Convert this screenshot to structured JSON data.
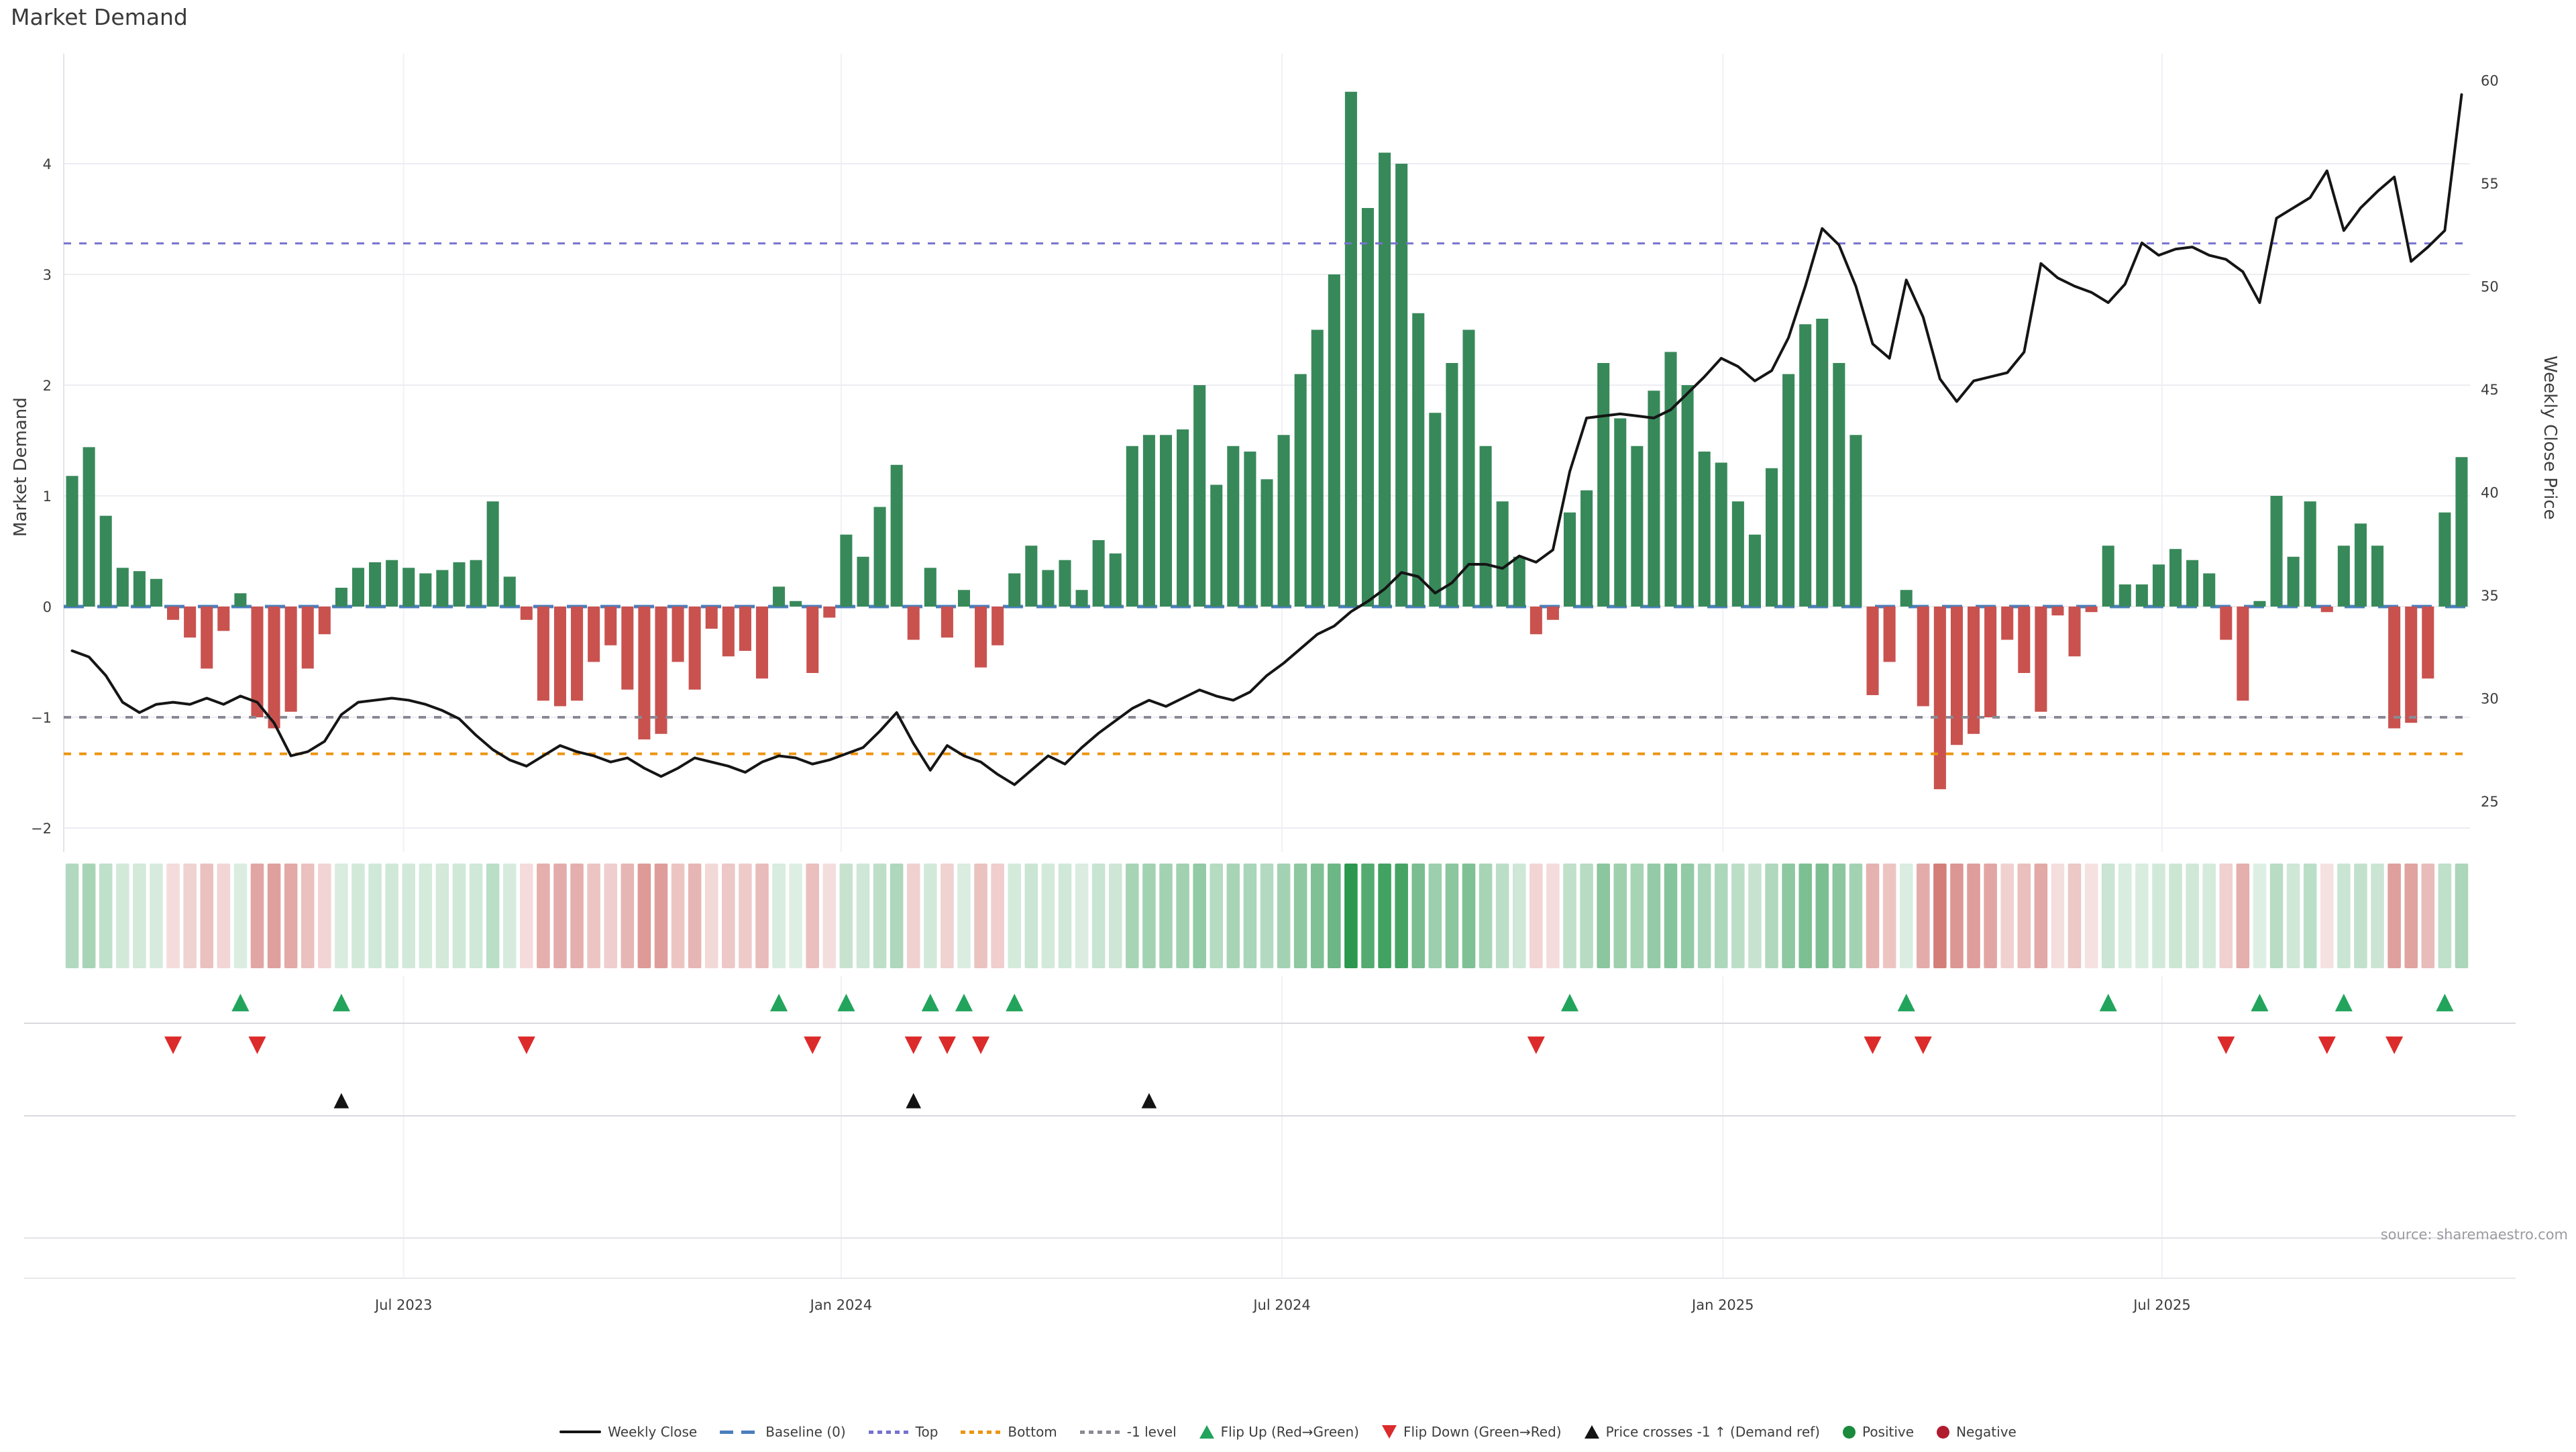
{
  "title": "Market Demand",
  "source": "source: sharemaestro.com",
  "left_axis": {
    "label": "Market Demand",
    "ticks": [
      "4",
      "3",
      "2",
      "1",
      "0",
      "−1",
      "−2"
    ],
    "tick_values": [
      4,
      3,
      2,
      1,
      0,
      -1,
      -2
    ]
  },
  "right_axis": {
    "label": "Weekly Close Price",
    "ticks": [
      "60",
      "55",
      "50",
      "45",
      "40",
      "35",
      "30",
      "25"
    ],
    "tick_values": [
      60,
      55,
      50,
      45,
      40,
      35,
      30,
      25
    ]
  },
  "colors": {
    "bar_positive": "#38895a",
    "bar_negative": "#c9524f",
    "price_line": "#151515",
    "baseline": "#4a7ebb",
    "top_level": "#7672cf",
    "bottom_level": "#ec9410",
    "minus_one_level": "#8a8a94",
    "flip_up_marker": "#22a45c",
    "flip_down_marker": "#dc2b2b",
    "cross_marker": "#131313",
    "heat_positive": "#1e9144",
    "heat_negative": "#c65550",
    "gridline": "#ededf2",
    "panel_separator": "#d9d9de",
    "axis_text": "#3d3d3d"
  },
  "legend": [
    {
      "label": "Weekly Close",
      "swatch": "line",
      "color": "#141414"
    },
    {
      "label": "Baseline (0)",
      "swatch": "dash",
      "color": "#4a7ebb"
    },
    {
      "label": "Top",
      "swatch": "dots",
      "color": "#7672cf"
    },
    {
      "label": "Bottom",
      "swatch": "dots",
      "color": "#ec9410"
    },
    {
      "label": "-1 level",
      "swatch": "dots",
      "color": "#8a8a94"
    },
    {
      "label": "Flip Up (Red→Green)",
      "swatch": "tri-up",
      "color": "#22a45c"
    },
    {
      "label": "Flip Down (Green→Red)",
      "swatch": "tri-down",
      "color": "#dc2b2b"
    },
    {
      "label": "Price crosses -1 ↑ (Demand ref)",
      "swatch": "tri-up",
      "color": "#131313"
    },
    {
      "label": "Positive",
      "swatch": "circle",
      "color": "#1a8a3c"
    },
    {
      "label": "Negative",
      "swatch": "circle",
      "color": "#b01c2e"
    }
  ],
  "chart_data": {
    "type": "bar",
    "title": "Market Demand",
    "xlabel": "",
    "ylabel_left": "Market Demand",
    "ylabel_right": "Weekly Close Price",
    "weeks": 143,
    "x_tick_labels": [
      "Jul 2023",
      "Jan 2024",
      "Jul 2024",
      "Jan 2025",
      "Jul 2025"
    ],
    "x_tick_weeks": [
      20.7,
      46.7,
      72.9,
      99.1,
      125.2
    ],
    "left_ylim": [
      -2.22,
      4.99
    ],
    "right_ylim": [
      22.0,
      60.0
    ],
    "levels": {
      "baseline": 0,
      "top": 3.28,
      "bottom": -1.33,
      "minus_one": -1
    },
    "series": [
      {
        "name": "Market Demand",
        "type": "bar",
        "values": [
          1.18,
          1.44,
          0.82,
          0.35,
          0.32,
          0.25,
          -0.12,
          -0.28,
          -0.56,
          -0.22,
          0.12,
          -1.0,
          -1.1,
          -0.95,
          -0.56,
          -0.25,
          0.17,
          0.35,
          0.4,
          0.42,
          0.35,
          0.3,
          0.33,
          0.4,
          0.42,
          0.95,
          0.27,
          -0.12,
          -0.85,
          -0.9,
          -0.85,
          -0.5,
          -0.35,
          -0.75,
          -1.2,
          -1.15,
          -0.5,
          -0.75,
          -0.2,
          -0.45,
          -0.4,
          -0.65,
          0.18,
          0.05,
          -0.6,
          -0.1,
          0.65,
          0.45,
          0.9,
          1.28,
          -0.3,
          0.35,
          -0.28,
          0.15,
          -0.55,
          -0.35,
          0.3,
          0.55,
          0.33,
          0.42,
          0.15,
          0.6,
          0.48,
          1.45,
          1.55,
          1.55,
          1.6,
          2.0,
          1.1,
          1.45,
          1.4,
          1.15,
          1.55,
          2.1,
          2.5,
          3.0,
          4.65,
          3.6,
          4.1,
          4.0,
          2.65,
          1.75,
          2.2,
          2.5,
          1.45,
          0.95,
          0.45,
          -0.25,
          -0.12,
          0.85,
          1.05,
          2.2,
          1.7,
          1.45,
          1.95,
          2.3,
          2.0,
          1.4,
          1.3,
          0.95,
          0.65,
          1.25,
          2.1,
          2.55,
          2.6,
          2.2,
          1.55,
          -0.8,
          -0.5,
          0.15,
          -0.9,
          -1.65,
          -1.25,
          -1.15,
          -1.0,
          -0.3,
          -0.6,
          -0.95,
          -0.08,
          -0.45,
          -0.05,
          0.55,
          0.2,
          0.2,
          0.38,
          0.52,
          0.42,
          0.3,
          -0.3,
          -0.85,
          0.05,
          1.0,
          0.45,
          0.95,
          -0.05,
          0.55,
          0.75,
          0.55,
          -1.1,
          -1.05,
          -0.65,
          0.85,
          1.35
        ]
      },
      {
        "name": "Weekly Close",
        "type": "line",
        "values": [
          32.3,
          32.0,
          31.1,
          29.8,
          29.3,
          29.7,
          29.8,
          29.7,
          30.0,
          29.7,
          30.1,
          29.8,
          28.8,
          27.2,
          27.4,
          27.9,
          29.2,
          29.8,
          29.9,
          30.0,
          29.9,
          29.7,
          29.4,
          29.0,
          28.2,
          27.5,
          27.0,
          26.7,
          27.2,
          27.7,
          27.4,
          27.2,
          26.9,
          27.1,
          26.6,
          26.2,
          26.6,
          27.1,
          26.9,
          26.7,
          26.4,
          26.9,
          27.2,
          27.1,
          26.8,
          27.0,
          27.3,
          27.6,
          28.4,
          29.3,
          27.8,
          26.5,
          27.7,
          27.2,
          26.9,
          26.3,
          25.8,
          26.5,
          27.2,
          26.8,
          27.6,
          28.3,
          28.9,
          29.5,
          29.9,
          29.6,
          30.0,
          30.4,
          30.1,
          29.9,
          30.3,
          31.1,
          31.7,
          32.4,
          33.1,
          33.5,
          34.2,
          34.7,
          35.3,
          36.1,
          35.9,
          35.1,
          35.6,
          36.5,
          36.5,
          36.3,
          36.9,
          36.6,
          37.2,
          41.0,
          43.6,
          43.7,
          43.8,
          43.7,
          43.6,
          44.0,
          44.8,
          45.6,
          46.5,
          46.1,
          45.4,
          45.9,
          47.5,
          50.0,
          52.8,
          52.0,
          50.0,
          47.2,
          46.5,
          50.3,
          48.5,
          45.5,
          44.4,
          45.4,
          45.6,
          45.8,
          46.8,
          51.1,
          50.4,
          50.0,
          49.7,
          49.2,
          50.1,
          52.1,
          51.5,
          51.8,
          51.9,
          51.5,
          51.3,
          50.7,
          49.2,
          53.3,
          53.8,
          54.3,
          55.6,
          52.7,
          53.8,
          54.6,
          55.3,
          51.2,
          51.9,
          52.7,
          59.3
        ]
      }
    ],
    "price_cross_weeks": [
      17,
      51,
      65
    ],
    "heatmap": {
      "description": "weekly demand sign/intensity strip derived from bar values",
      "max_positive": 4.65,
      "max_negative": 1.65
    },
    "grid": true,
    "legend_position": "bottom"
  }
}
